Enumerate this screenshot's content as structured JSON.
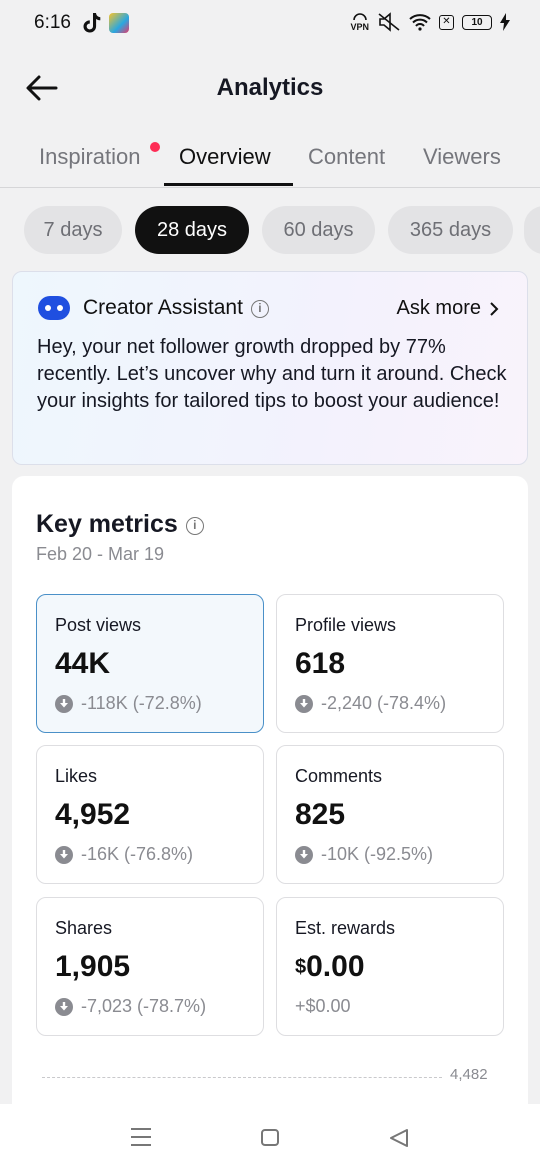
{
  "status_bar": {
    "time": "6:16",
    "vpn": "VPN",
    "battery": "10"
  },
  "header": {
    "title": "Analytics"
  },
  "tabs": [
    {
      "label": "Inspiration",
      "active": false,
      "has_dot": true
    },
    {
      "label": "Overview",
      "active": true
    },
    {
      "label": "Content",
      "active": false
    },
    {
      "label": "Viewers",
      "active": false
    }
  ],
  "periods": [
    {
      "label": "7 days",
      "active": false
    },
    {
      "label": "28 days",
      "active": true
    },
    {
      "label": "60 days",
      "active": false
    },
    {
      "label": "365 days",
      "active": false
    }
  ],
  "assistant": {
    "title": "Creator Assistant",
    "ask_more": "Ask more",
    "message": "Hey, your net follower growth dropped by 77% recently. Let’s uncover why and turn it around. Check your insights for tailored tips to boost your audience!"
  },
  "key_metrics": {
    "title": "Key metrics",
    "date_range": "Feb 20 - Mar 19",
    "metrics": [
      {
        "label": "Post views",
        "value": "44K",
        "change": "-118K (-72.8%)",
        "direction": "down",
        "selected": true
      },
      {
        "label": "Profile views",
        "value": "618",
        "change": "-2,240 (-78.4%)",
        "direction": "down"
      },
      {
        "label": "Likes",
        "value": "4,952",
        "change": "-16K (-76.8%)",
        "direction": "down"
      },
      {
        "label": "Comments",
        "value": "825",
        "change": "-10K (-92.5%)",
        "direction": "down"
      },
      {
        "label": "Shares",
        "value": "1,905",
        "change": "-7,023 (-78.7%)",
        "direction": "down"
      },
      {
        "label": "Est. rewards",
        "value_currency": "$",
        "value": "0.00",
        "change": "+$0.00",
        "direction": "none"
      }
    ],
    "chart_max_label": "4,482"
  },
  "colors": {
    "accent_dot": "#fe2c55",
    "selected_border": "#4a90c8",
    "active_pill": "#111111"
  }
}
